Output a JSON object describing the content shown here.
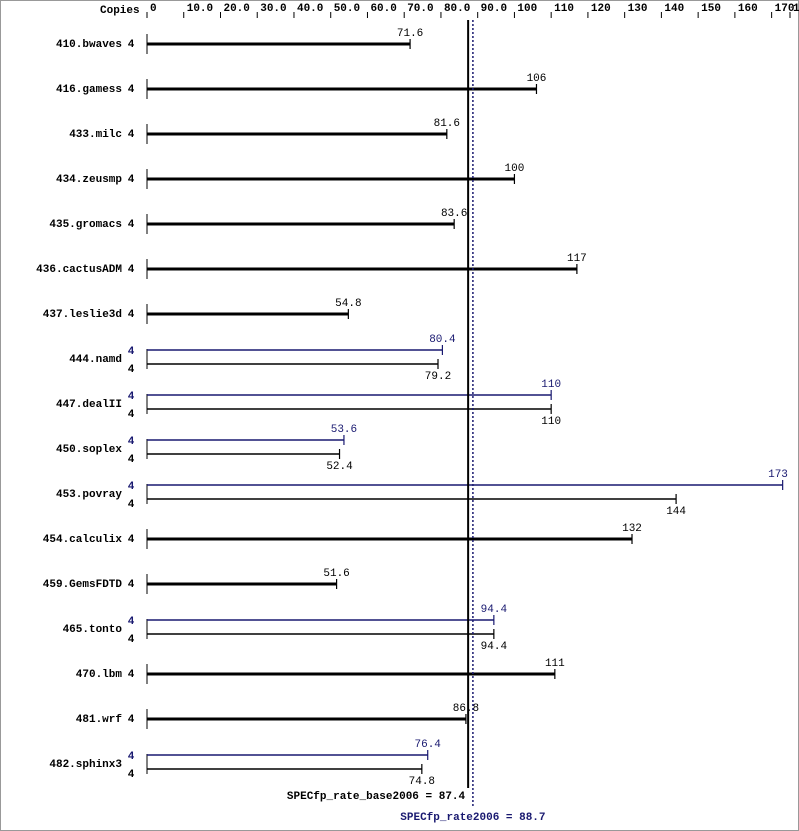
{
  "chart_data": {
    "type": "bar",
    "orientation": "horizontal",
    "copies_header": "Copies",
    "categories": [
      "410.bwaves",
      "416.gamess",
      "433.milc",
      "434.zeusmp",
      "435.gromacs",
      "436.cactusADM",
      "437.leslie3d",
      "444.namd",
      "447.dealII",
      "450.soplex",
      "453.povray",
      "454.calculix",
      "459.GemsFDTD",
      "465.tonto",
      "470.lbm",
      "481.wrf",
      "482.sphinx3"
    ],
    "series": [
      {
        "color": "#000000",
        "values": [
          71.6,
          106,
          81.6,
          100,
          83.6,
          117,
          54.8,
          79.2,
          110,
          52.4,
          144,
          132,
          51.6,
          94.4,
          111,
          86.8,
          74.8
        ],
        "copies": [
          4,
          4,
          4,
          4,
          4,
          4,
          4,
          4,
          4,
          4,
          4,
          4,
          4,
          4,
          4,
          4,
          4
        ]
      },
      {
        "color": "#191970",
        "values": [
          null,
          null,
          null,
          null,
          null,
          null,
          null,
          80.4,
          110,
          53.6,
          173,
          null,
          null,
          94.4,
          null,
          null,
          76.4
        ],
        "copies": [
          null,
          null,
          null,
          null,
          null,
          null,
          null,
          4,
          4,
          4,
          4,
          null,
          null,
          4,
          null,
          null,
          4
        ]
      }
    ],
    "xlim": [
      0,
      175
    ],
    "xticks": [
      0,
      {
        "value": 10,
        "label": "10.0"
      },
      {
        "value": 20,
        "label": "20.0"
      },
      {
        "value": 30,
        "label": "30.0"
      },
      {
        "value": 40,
        "label": "40.0"
      },
      {
        "value": 50,
        "label": "50.0"
      },
      {
        "value": 60,
        "label": "60.0"
      },
      {
        "value": 70,
        "label": "70.0"
      },
      {
        "value": 80,
        "label": "80.0"
      },
      {
        "value": 90,
        "label": "90.0"
      },
      100,
      110,
      120,
      130,
      140,
      150,
      160,
      170,
      175
    ],
    "reference_lines": [
      {
        "label": "SPECfp_rate_base2006 = 87.4",
        "value": 87.4,
        "color": "#000000",
        "style": "solid"
      },
      {
        "label": "SPECfp_rate2006 = 88.7",
        "value": 88.7,
        "color": "#191970",
        "style": "dotted"
      }
    ]
  }
}
